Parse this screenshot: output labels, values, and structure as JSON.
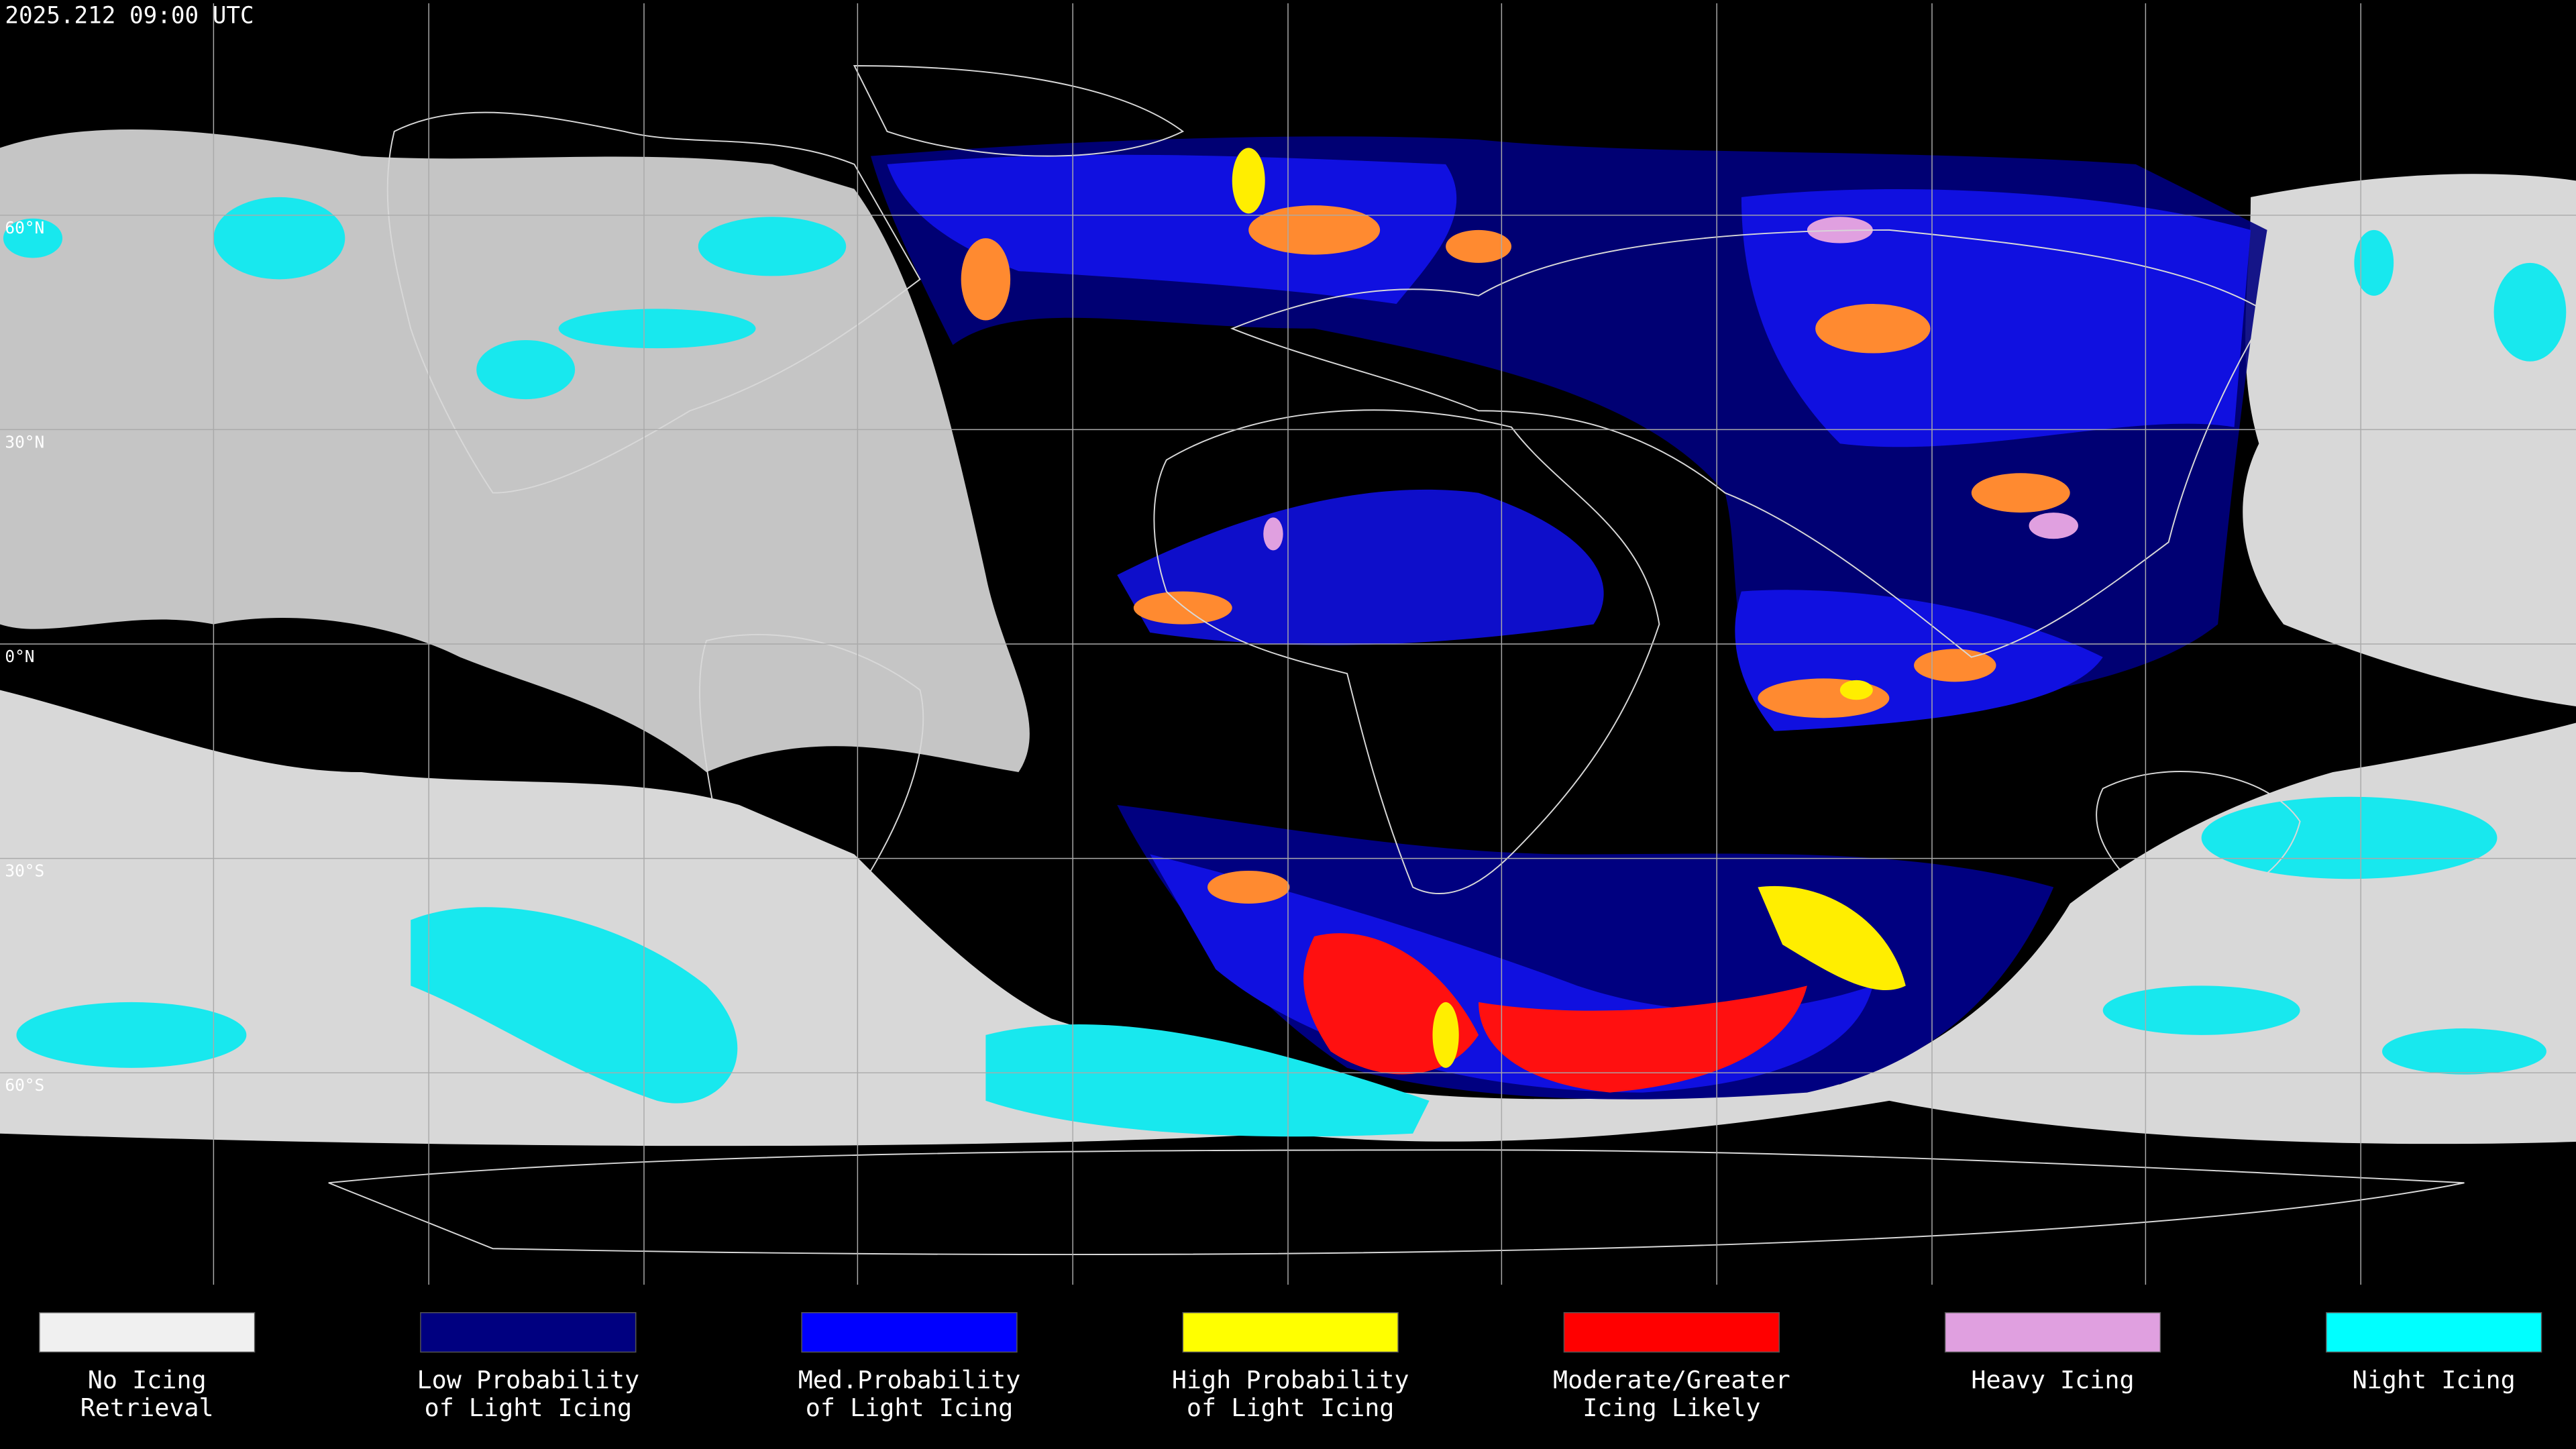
{
  "title": "2025.212 09:00 UTC",
  "latitudes": [
    {
      "value": 60,
      "label": "60°N"
    },
    {
      "value": 30,
      "label": "30°N"
    },
    {
      "value": 0,
      "label": "0°N"
    },
    {
      "value": -30,
      "label": "30°S"
    },
    {
      "value": -60,
      "label": "60°S"
    }
  ],
  "legend": [
    {
      "color": "#f0f0f0",
      "lines": [
        "No Icing",
        "Retrieval"
      ]
    },
    {
      "color": "#000080",
      "lines": [
        "Low Probability",
        "of Light Icing"
      ]
    },
    {
      "color": "#0000ff",
      "lines": [
        "Med.Probability",
        "of Light Icing"
      ]
    },
    {
      "color": "#ffff00",
      "lines": [
        "High Probability",
        "of Light Icing"
      ]
    },
    {
      "color": "#ff0000",
      "lines": [
        "Moderate/Greater",
        "Icing Likely"
      ]
    },
    {
      "color": "#e0a0e0",
      "lines": [
        "Heavy Icing"
      ]
    },
    {
      "color": "#00ffff",
      "lines": [
        "Night Icing"
      ]
    }
  ]
}
